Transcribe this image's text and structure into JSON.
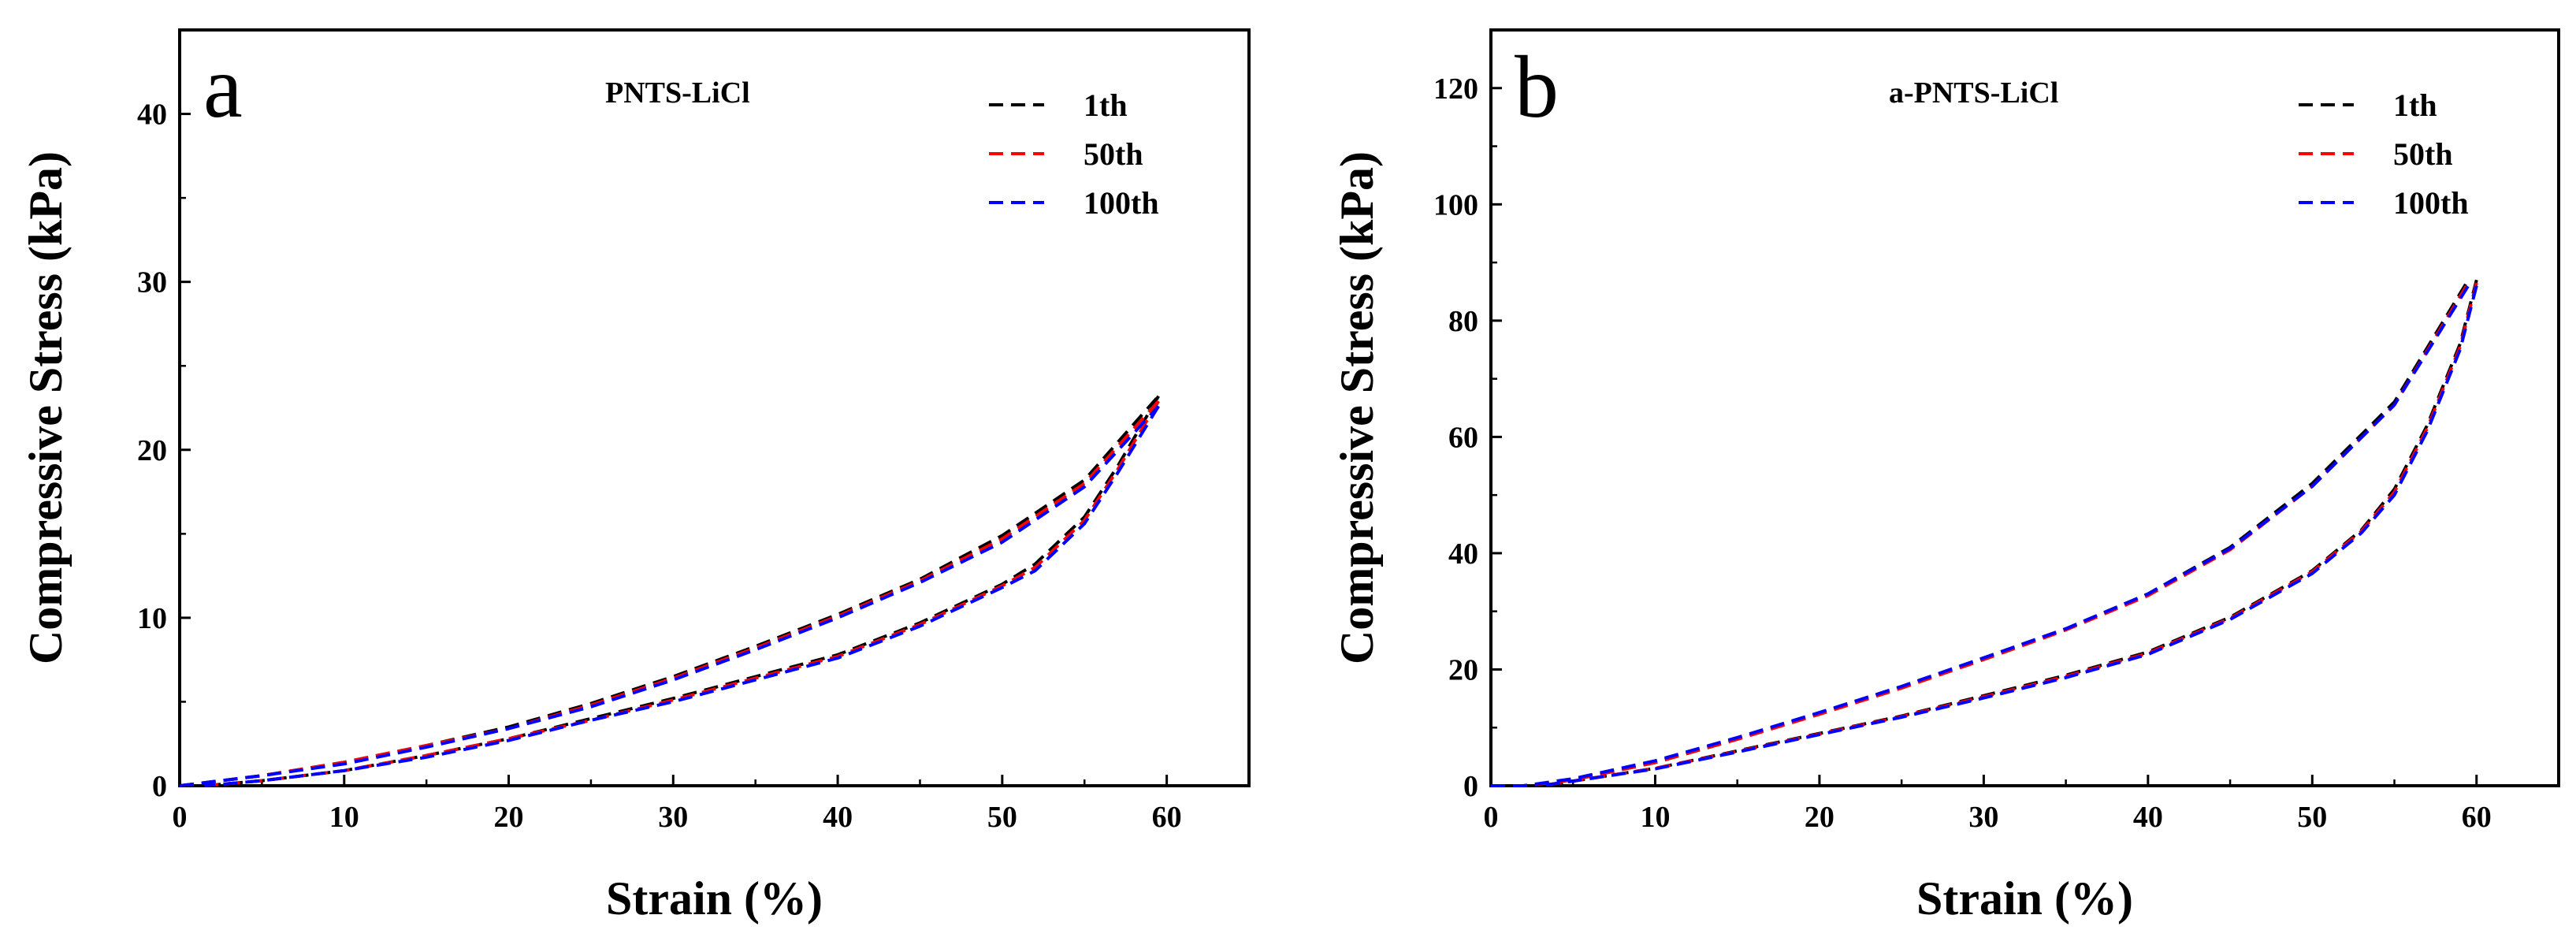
{
  "chart_data": [
    {
      "type": "line",
      "panel_label": "a",
      "title": "PNTS-LiCl",
      "xlabel": "Strain (%)",
      "ylabel": "Compressive Stress (kPa)",
      "xlim": [
        0,
        65
      ],
      "ylim": [
        0,
        45
      ],
      "xticks": [
        0,
        10,
        20,
        30,
        40,
        50,
        60
      ],
      "yticks": [
        0,
        10,
        20,
        30,
        40
      ],
      "legend_position": "top-right",
      "series": [
        {
          "name": "1th",
          "color": "#000000",
          "loading": [
            [
              0,
              0
            ],
            [
              5,
              0.6
            ],
            [
              10,
              1.4
            ],
            [
              15,
              2.4
            ],
            [
              20,
              3.5
            ],
            [
              25,
              4.9
            ],
            [
              30,
              6.5
            ],
            [
              35,
              8.3
            ],
            [
              40,
              10.2
            ],
            [
              45,
              12.3
            ],
            [
              50,
              14.9
            ],
            [
              55,
              18.2
            ],
            [
              59.5,
              23.2
            ]
          ],
          "unloading": [
            [
              59.5,
              23.2
            ],
            [
              57,
              19.0
            ],
            [
              55,
              16.0
            ],
            [
              52,
              13.2
            ],
            [
              50,
              12.0
            ],
            [
              45,
              9.7
            ],
            [
              40,
              7.8
            ],
            [
              35,
              6.5
            ],
            [
              30,
              5.2
            ],
            [
              25,
              4.0
            ],
            [
              20,
              2.8
            ],
            [
              15,
              1.8
            ],
            [
              10,
              0.9
            ],
            [
              5,
              0.3
            ],
            [
              1.5,
              0
            ]
          ]
        },
        {
          "name": "50th",
          "color": "#ff0000",
          "loading": [
            [
              0,
              0
            ],
            [
              5,
              0.6
            ],
            [
              10,
              1.4
            ],
            [
              15,
              2.4
            ],
            [
              20,
              3.4
            ],
            [
              25,
              4.8
            ],
            [
              30,
              6.4
            ],
            [
              35,
              8.2
            ],
            [
              40,
              10.1
            ],
            [
              45,
              12.2
            ],
            [
              50,
              14.7
            ],
            [
              55,
              18.0
            ],
            [
              59.5,
              22.9
            ]
          ],
          "unloading": [
            [
              59.5,
              22.9
            ],
            [
              57,
              18.8
            ],
            [
              55,
              15.8
            ],
            [
              52,
              13.0
            ],
            [
              50,
              11.9
            ],
            [
              45,
              9.6
            ],
            [
              40,
              7.7
            ],
            [
              35,
              6.4
            ],
            [
              30,
              5.1
            ],
            [
              25,
              3.9
            ],
            [
              20,
              2.8
            ],
            [
              15,
              1.8
            ],
            [
              10,
              0.9
            ],
            [
              5,
              0.3
            ],
            [
              1.5,
              0
            ]
          ]
        },
        {
          "name": "100th",
          "color": "#0000ff",
          "loading": [
            [
              0,
              0
            ],
            [
              5,
              0.6
            ],
            [
              10,
              1.3
            ],
            [
              15,
              2.3
            ],
            [
              20,
              3.4
            ],
            [
              25,
              4.7
            ],
            [
              30,
              6.3
            ],
            [
              35,
              8.1
            ],
            [
              40,
              10.0
            ],
            [
              45,
              12.1
            ],
            [
              50,
              14.5
            ],
            [
              55,
              17.8
            ],
            [
              59.5,
              22.6
            ]
          ],
          "unloading": [
            [
              59.5,
              22.6
            ],
            [
              57,
              18.6
            ],
            [
              55,
              15.6
            ],
            [
              52,
              12.8
            ],
            [
              50,
              11.8
            ],
            [
              45,
              9.5
            ],
            [
              40,
              7.6
            ],
            [
              35,
              6.3
            ],
            [
              30,
              5.0
            ],
            [
              25,
              3.9
            ],
            [
              20,
              2.7
            ],
            [
              15,
              1.7
            ],
            [
              10,
              0.9
            ],
            [
              5,
              0.3
            ],
            [
              1.5,
              0
            ]
          ]
        }
      ]
    },
    {
      "type": "line",
      "panel_label": "b",
      "title": "a-PNTS-LiCl",
      "xlabel": "Strain (%)",
      "ylabel": "Compressive Stress (kPa)",
      "xlim": [
        0,
        65
      ],
      "ylim": [
        0,
        130
      ],
      "xticks": [
        0,
        10,
        20,
        30,
        40,
        50,
        60
      ],
      "yticks": [
        0,
        20,
        40,
        60,
        80,
        100,
        120
      ],
      "legend_position": "top-right",
      "series": [
        {
          "name": "1th",
          "color": "#000000",
          "loading": [
            [
              0,
              0
            ],
            [
              2,
              0
            ],
            [
              5,
              1.0
            ],
            [
              10,
              4.0
            ],
            [
              15,
              8.0
            ],
            [
              20,
              12.5
            ],
            [
              25,
              17.0
            ],
            [
              30,
              22.0
            ],
            [
              35,
              27.0
            ],
            [
              40,
              33.0
            ],
            [
              45,
              41.0
            ],
            [
              50,
              52.0
            ],
            [
              55,
              66.0
            ],
            [
              59.5,
              87.0
            ]
          ],
          "unloading": [
            [
              60,
              87.0
            ],
            [
              59,
              76.0
            ],
            [
              57,
              62.0
            ],
            [
              55,
              51.0
            ],
            [
              53,
              44.0
            ],
            [
              50,
              37.0
            ],
            [
              45,
              29.0
            ],
            [
              40,
              23.0
            ],
            [
              35,
              19.0
            ],
            [
              30,
              15.5
            ],
            [
              25,
              12.0
            ],
            [
              20,
              9.0
            ],
            [
              15,
              6.0
            ],
            [
              10,
              3.0
            ],
            [
              5,
              0.8
            ],
            [
              3,
              0
            ]
          ]
        },
        {
          "name": "50th",
          "color": "#ff0000",
          "loading": [
            [
              0,
              0
            ],
            [
              2,
              0
            ],
            [
              5,
              1.0
            ],
            [
              10,
              4.0
            ],
            [
              15,
              8.0
            ],
            [
              20,
              12.3
            ],
            [
              25,
              16.8
            ],
            [
              30,
              21.7
            ],
            [
              35,
              26.8
            ],
            [
              40,
              32.7
            ],
            [
              45,
              40.6
            ],
            [
              50,
              51.5
            ],
            [
              55,
              65.5
            ],
            [
              59.5,
              86.5
            ]
          ],
          "unloading": [
            [
              60,
              86.5
            ],
            [
              59,
              75.5
            ],
            [
              57,
              61.5
            ],
            [
              55,
              50.5
            ],
            [
              53,
              43.8
            ],
            [
              50,
              36.8
            ],
            [
              45,
              28.8
            ],
            [
              40,
              22.8
            ],
            [
              35,
              18.8
            ],
            [
              30,
              15.3
            ],
            [
              25,
              11.9
            ],
            [
              20,
              8.9
            ],
            [
              15,
              5.9
            ],
            [
              10,
              3.0
            ],
            [
              5,
              0.8
            ],
            [
              3,
              0
            ]
          ]
        },
        {
          "name": "100th",
          "color": "#0000ff",
          "loading": [
            [
              0,
              0
            ],
            [
              2,
              0
            ],
            [
              5,
              1.2
            ],
            [
              10,
              4.3
            ],
            [
              15,
              8.3
            ],
            [
              20,
              12.6
            ],
            [
              25,
              17.1
            ],
            [
              30,
              22.0
            ],
            [
              35,
              27.0
            ],
            [
              40,
              33.0
            ],
            [
              45,
              40.8
            ],
            [
              50,
              51.5
            ],
            [
              55,
              65.5
            ],
            [
              59.5,
              86.0
            ]
          ],
          "unloading": [
            [
              60,
              86.0
            ],
            [
              59,
              75.0
            ],
            [
              57,
              61.0
            ],
            [
              55,
              50.0
            ],
            [
              53,
              43.5
            ],
            [
              50,
              36.5
            ],
            [
              45,
              28.6
            ],
            [
              40,
              22.6
            ],
            [
              35,
              18.6
            ],
            [
              30,
              15.1
            ],
            [
              25,
              11.8
            ],
            [
              20,
              8.8
            ],
            [
              15,
              5.8
            ],
            [
              10,
              2.9
            ],
            [
              5,
              0.8
            ],
            [
              3,
              0
            ]
          ]
        }
      ]
    }
  ]
}
